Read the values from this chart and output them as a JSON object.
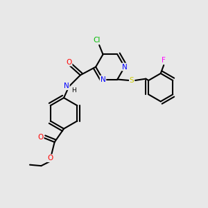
{
  "background_color": "#e8e8e8",
  "bond_color": "#000000",
  "bond_width": 1.5,
  "figsize": [
    3.0,
    3.0
  ],
  "dpi": 100,
  "atoms": {
    "Cl": {
      "color": "#00bb00",
      "fontsize": 7.5
    },
    "N": {
      "color": "#0000ff",
      "fontsize": 7.5
    },
    "O": {
      "color": "#ff0000",
      "fontsize": 7.5
    },
    "S": {
      "color": "#cccc00",
      "fontsize": 7.5
    },
    "F": {
      "color": "#ff00ff",
      "fontsize": 7.5
    },
    "H": {
      "color": "#000000",
      "fontsize": 6.5
    },
    "C": {
      "color": "#000000",
      "fontsize": 7.5
    }
  }
}
